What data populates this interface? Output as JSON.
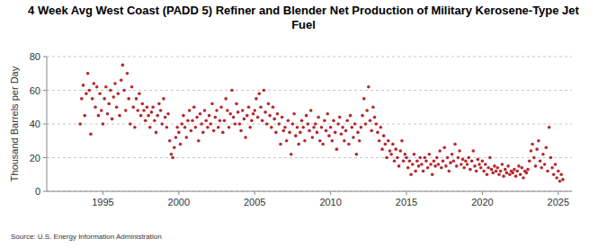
{
  "chart_data": {
    "type": "scatter",
    "title": "4 Week Avg West Coast (PADD 5) Refiner and Blender Net Production of Military Kerosene-Type Jet Fuel",
    "y_label": "Thousand Barrels per Day",
    "source": "Source: U.S. Energy Information Administration",
    "color": "#b5282e",
    "marker": "circle",
    "grid": true,
    "xlim": [
      1991.3,
      2025.9
    ],
    "xticks": [
      1995,
      2000,
      2005,
      2010,
      2015,
      2020,
      2025
    ],
    "ylim": [
      0,
      80
    ],
    "yticks": [
      0,
      20,
      40,
      60,
      80
    ],
    "x": [
      1993.5,
      1993.6,
      1993.7,
      1993.8,
      1993.9,
      1994.0,
      1994.1,
      1994.2,
      1994.3,
      1994.4,
      1994.5,
      1994.6,
      1994.7,
      1994.8,
      1994.9,
      1995.0,
      1995.1,
      1995.2,
      1995.3,
      1995.4,
      1995.5,
      1995.6,
      1995.7,
      1995.8,
      1995.9,
      1996.0,
      1996.1,
      1996.2,
      1996.3,
      1996.4,
      1996.5,
      1996.6,
      1996.7,
      1996.8,
      1996.9,
      1997.0,
      1997.1,
      1997.2,
      1997.3,
      1997.4,
      1997.5,
      1997.6,
      1997.7,
      1997.8,
      1997.9,
      1998.0,
      1998.1,
      1998.2,
      1998.3,
      1998.4,
      1998.5,
      1998.6,
      1998.7,
      1998.8,
      1998.9,
      1999.0,
      1999.1,
      1999.2,
      1999.3,
      1999.4,
      1999.5,
      1999.6,
      1999.7,
      1999.8,
      1999.9,
      2000.0,
      2000.1,
      2000.2,
      2000.3,
      2000.4,
      2000.5,
      2000.6,
      2000.7,
      2000.8,
      2000.9,
      2001.0,
      2001.1,
      2001.2,
      2001.3,
      2001.4,
      2001.5,
      2001.6,
      2001.7,
      2001.8,
      2001.9,
      2002.0,
      2002.1,
      2002.2,
      2002.3,
      2002.4,
      2002.5,
      2002.6,
      2002.7,
      2002.8,
      2002.9,
      2003.0,
      2003.1,
      2003.2,
      2003.3,
      2003.4,
      2003.5,
      2003.6,
      2003.7,
      2003.8,
      2003.9,
      2004.0,
      2004.1,
      2004.2,
      2004.3,
      2004.4,
      2004.5,
      2004.6,
      2004.7,
      2004.8,
      2004.9,
      2005.0,
      2005.1,
      2005.2,
      2005.3,
      2005.4,
      2005.5,
      2005.6,
      2005.7,
      2005.8,
      2005.9,
      2006.0,
      2006.1,
      2006.2,
      2006.3,
      2006.4,
      2006.5,
      2006.6,
      2006.7,
      2006.8,
      2006.9,
      2007.0,
      2007.1,
      2007.2,
      2007.3,
      2007.4,
      2007.5,
      2007.6,
      2007.7,
      2007.8,
      2007.9,
      2008.0,
      2008.1,
      2008.2,
      2008.3,
      2008.4,
      2008.5,
      2008.6,
      2008.7,
      2008.8,
      2008.9,
      2009.0,
      2009.1,
      2009.2,
      2009.3,
      2009.4,
      2009.5,
      2009.6,
      2009.7,
      2009.8,
      2009.9,
      2010.0,
      2010.1,
      2010.2,
      2010.3,
      2010.4,
      2010.5,
      2010.6,
      2010.7,
      2010.8,
      2010.9,
      2011.0,
      2011.1,
      2011.2,
      2011.3,
      2011.4,
      2011.5,
      2011.6,
      2011.7,
      2011.8,
      2011.9,
      2012.0,
      2012.1,
      2012.2,
      2012.3,
      2012.4,
      2012.5,
      2012.6,
      2012.7,
      2012.8,
      2012.9,
      2013.0,
      2013.1,
      2013.2,
      2013.3,
      2013.4,
      2013.5,
      2013.6,
      2013.7,
      2013.8,
      2013.9,
      2014.0,
      2014.1,
      2014.2,
      2014.3,
      2014.4,
      2014.5,
      2014.6,
      2014.7,
      2014.8,
      2014.9,
      2015.0,
      2015.1,
      2015.2,
      2015.3,
      2015.4,
      2015.5,
      2015.6,
      2015.7,
      2015.8,
      2015.9,
      2016.0,
      2016.1,
      2016.2,
      2016.3,
      2016.4,
      2016.5,
      2016.6,
      2016.7,
      2016.8,
      2016.9,
      2017.0,
      2017.1,
      2017.2,
      2017.3,
      2017.4,
      2017.5,
      2017.6,
      2017.7,
      2017.8,
      2017.9,
      2018.0,
      2018.1,
      2018.2,
      2018.3,
      2018.4,
      2018.5,
      2018.6,
      2018.7,
      2018.8,
      2018.9,
      2019.0,
      2019.1,
      2019.2,
      2019.3,
      2019.4,
      2019.5,
      2019.6,
      2019.7,
      2019.8,
      2019.9,
      2020.0,
      2020.1,
      2020.2,
      2020.3,
      2020.4,
      2020.5,
      2020.6,
      2020.7,
      2020.8,
      2020.9,
      2021.0,
      2021.1,
      2021.2,
      2021.3,
      2021.4,
      2021.5,
      2021.6,
      2021.7,
      2021.8,
      2021.9,
      2022.0,
      2022.1,
      2022.2,
      2022.3,
      2022.4,
      2022.5,
      2022.6,
      2022.7,
      2022.8,
      2022.9,
      2023.0,
      2023.1,
      2023.2,
      2023.3,
      2023.4,
      2023.5,
      2023.6,
      2023.7,
      2023.8,
      2023.9,
      2024.0,
      2024.1,
      2024.2,
      2024.3,
      2024.4,
      2024.5,
      2024.6,
      2024.7,
      2024.8,
      2024.9,
      2025.0,
      2025.1,
      2025.2,
      2025.3
    ],
    "values": [
      40,
      55,
      63,
      45,
      58,
      70,
      60,
      34,
      55,
      64,
      50,
      62,
      45,
      58,
      48,
      40,
      55,
      62,
      46,
      52,
      60,
      43,
      56,
      64,
      50,
      58,
      45,
      66,
      75,
      60,
      48,
      70,
      55,
      40,
      62,
      50,
      38,
      55,
      48,
      58,
      45,
      52,
      48,
      42,
      50,
      45,
      38,
      47,
      50,
      42,
      35,
      45,
      52,
      48,
      40,
      55,
      44,
      38,
      46,
      30,
      22,
      20,
      26,
      32,
      38,
      35,
      28,
      40,
      45,
      38,
      32,
      42,
      48,
      36,
      42,
      50,
      38,
      44,
      30,
      46,
      40,
      35,
      48,
      42,
      38,
      45,
      40,
      52,
      36,
      44,
      48,
      38,
      42,
      50,
      35,
      42,
      55,
      48,
      38,
      46,
      60,
      44,
      40,
      52,
      47,
      40,
      36,
      48,
      43,
      32,
      45,
      50,
      38,
      42,
      46,
      48,
      55,
      44,
      58,
      50,
      42,
      60,
      47,
      40,
      52,
      45,
      38,
      50,
      43,
      35,
      46,
      40,
      28,
      44,
      36,
      38,
      30,
      42,
      35,
      22,
      40,
      46,
      33,
      38,
      28,
      35,
      42,
      38,
      30,
      45,
      40,
      36,
      48,
      32,
      38,
      40,
      35,
      44,
      30,
      38,
      28,
      42,
      36,
      46,
      33,
      38,
      30,
      42,
      35,
      25,
      40,
      44,
      34,
      38,
      30,
      36,
      42,
      28,
      45,
      38,
      32,
      40,
      22,
      35,
      30,
      38,
      45,
      55,
      40,
      48,
      62,
      42,
      36,
      50,
      44,
      40,
      35,
      30,
      38,
      25,
      33,
      28,
      20,
      30,
      24,
      22,
      28,
      18,
      25,
      20,
      15,
      24,
      30,
      18,
      22,
      20,
      14,
      18,
      10,
      16,
      22,
      12,
      18,
      15,
      20,
      16,
      12,
      20,
      18,
      14,
      22,
      16,
      10,
      18,
      15,
      20,
      16,
      24,
      14,
      18,
      26,
      15,
      20,
      12,
      17,
      22,
      18,
      28,
      15,
      20,
      24,
      16,
      19,
      14,
      18,
      16,
      20,
      13,
      18,
      24,
      15,
      12,
      19,
      16,
      14,
      18,
      12,
      16,
      10,
      14,
      20,
      13,
      11,
      15,
      12,
      14,
      10,
      12,
      16,
      9,
      13,
      11,
      15,
      10,
      12,
      11,
      13,
      9,
      12,
      15,
      10,
      14,
      8,
      12,
      11,
      13,
      18,
      24,
      28,
      20,
      15,
      25,
      30,
      18,
      14,
      22,
      16,
      26,
      12,
      38,
      20,
      14,
      10,
      16,
      8,
      12,
      6,
      10,
      7
    ]
  }
}
